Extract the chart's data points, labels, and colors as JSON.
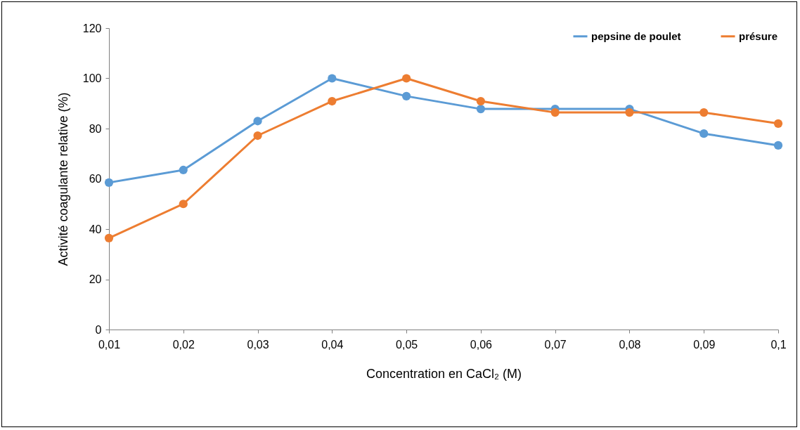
{
  "chart_data": {
    "type": "line",
    "xlabel": "Concentration en CaCl₂  (M)",
    "ylabel": "Activité coagulante relative (%)",
    "categories": [
      "0,01",
      "0,02",
      "0,03",
      "0,04",
      "0,05",
      "0,06",
      "0,07",
      "0,08",
      "0,09",
      "0,1"
    ],
    "series": [
      {
        "name": "pepsine de poulet",
        "color": "#5b9bd5",
        "values": [
          58.5,
          63.5,
          83,
          100,
          92.9,
          87.8,
          87.8,
          87.8,
          78,
          73.3
        ]
      },
      {
        "name": "présure",
        "color": "#ed7d31",
        "values": [
          36.4,
          50,
          77.2,
          90.9,
          100,
          90.9,
          86.4,
          86.4,
          86.4,
          82
        ]
      }
    ],
    "ylim": [
      0,
      120
    ],
    "yticks": [
      0,
      20,
      40,
      60,
      80,
      100,
      120
    ],
    "grid": false,
    "legend": "top right",
    "marker": "circle",
    "line_style": "solid"
  }
}
